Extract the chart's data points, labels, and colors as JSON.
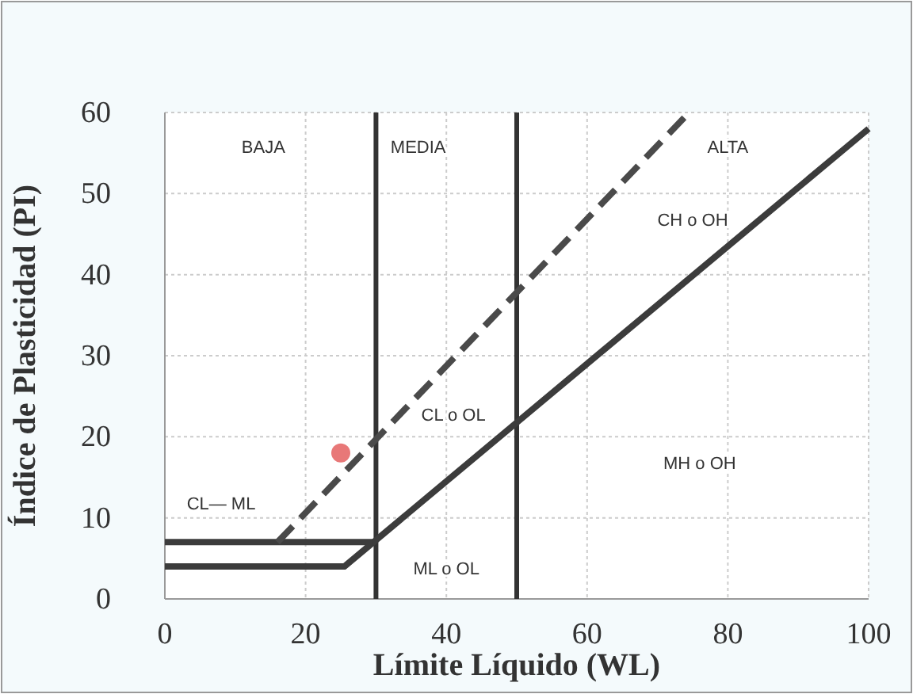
{
  "chart_data": {
    "type": "line",
    "xlabel": "Límite Líquido (WL)",
    "ylabel": "Índice de Plasticidad (PI)",
    "xlim": [
      0,
      100
    ],
    "ylim": [
      0,
      60
    ],
    "xticks": [
      0,
      20,
      40,
      60,
      80,
      100
    ],
    "yticks": [
      0,
      10,
      20,
      30,
      40,
      50,
      60
    ],
    "grid": true,
    "series": [
      {
        "color": "#3c3c3c",
        "line_style": "solid",
        "x": [
          0,
          25.5,
          100
        ],
        "values": [
          4,
          4,
          58
        ]
      },
      {
        "color": "#3c3c3c",
        "line_style": "solid",
        "x": [
          0,
          29.6
        ],
        "values": [
          7,
          7
        ]
      },
      {
        "color": "#4a4a4a",
        "line_style": "dashed",
        "x": [
          16,
          74.5
        ],
        "values": [
          7,
          60
        ]
      },
      {
        "type": "scatter",
        "color": "#e87878",
        "marker": "circle",
        "x": [
          25
        ],
        "values": [
          18
        ]
      }
    ],
    "ref_lines": [
      {
        "axis": "x",
        "value": 30,
        "color": "#333333"
      },
      {
        "axis": "x",
        "value": 50,
        "color": "#333333"
      }
    ],
    "annotations": [
      "BAJA",
      "MEDIA",
      "ALTA",
      "CH o OH",
      "CL o OL",
      "MH o OH",
      "CL— ML",
      "ML o OL"
    ]
  }
}
